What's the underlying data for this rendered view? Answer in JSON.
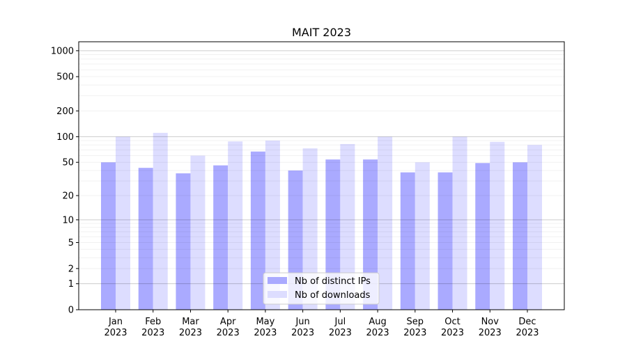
{
  "chart_data": {
    "type": "bar",
    "title": "MAIT 2023",
    "xlabel": "",
    "ylabel": "",
    "y_scale": "log(1+y)",
    "ylim": [
      0,
      1270
    ],
    "yticks": [
      0,
      1,
      2,
      5,
      10,
      20,
      50,
      100,
      200,
      500,
      1000
    ],
    "grid": true,
    "legend_placement": "lower center",
    "categories": [
      "Jan\n2023",
      "Feb\n2023",
      "Mar\n2023",
      "Apr\n2023",
      "May\n2023",
      "Jun\n2023",
      "Jul\n2023",
      "Aug\n2023",
      "Sep\n2023",
      "Oct\n2023",
      "Nov\n2023",
      "Dec\n2023"
    ],
    "series": [
      {
        "name": "Nb of distinct IPs",
        "color": "#aaaaff",
        "values": [
          50,
          43,
          37,
          46,
          67,
          40,
          54,
          54,
          38,
          38,
          49,
          50
        ]
      },
      {
        "name": "Nb of downloads",
        "color": "#ddddff",
        "values": [
          100,
          111,
          60,
          88,
          90,
          73,
          82,
          100,
          50,
          100,
          87,
          80
        ]
      }
    ]
  }
}
